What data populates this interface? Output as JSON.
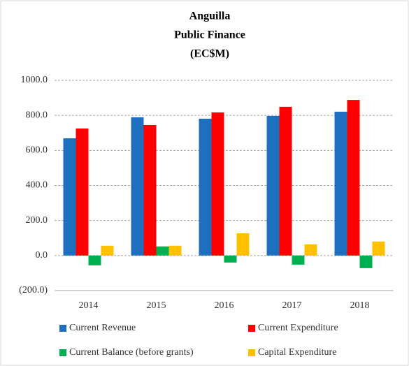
{
  "chart_data": {
    "type": "bar",
    "title": [
      "Anguilla",
      "Public Finance",
      "(EC$M)"
    ],
    "categories": [
      "2014",
      "2015",
      "2016",
      "2017",
      "2018"
    ],
    "series": [
      {
        "name": "Current Revenue",
        "color": "#1f6fc0",
        "values": [
          669,
          789,
          781,
          797,
          821
        ]
      },
      {
        "name": "Current Expenditure",
        "color": "#ff0000",
        "values": [
          725,
          745,
          817,
          849,
          888
        ]
      },
      {
        "name": "Current Balance (before grants)",
        "color": "#00b050",
        "values": [
          -56,
          52,
          -40,
          -52,
          -72
        ]
      },
      {
        "name": "Capital Expenditure",
        "color": "#ffc000",
        "values": [
          56,
          56,
          127,
          64,
          80
        ]
      }
    ],
    "ylim": [
      -200,
      1000
    ],
    "yticks": [
      {
        "value": -200,
        "label": "(200.0)"
      },
      {
        "value": 0,
        "label": "0.0"
      },
      {
        "value": 200,
        "label": "200.0"
      },
      {
        "value": 400,
        "label": "400.0"
      },
      {
        "value": 600,
        "label": "600.0"
      },
      {
        "value": 800,
        "label": "800.0"
      },
      {
        "value": 1000,
        "label": "1000.0"
      }
    ],
    "grid": true
  }
}
